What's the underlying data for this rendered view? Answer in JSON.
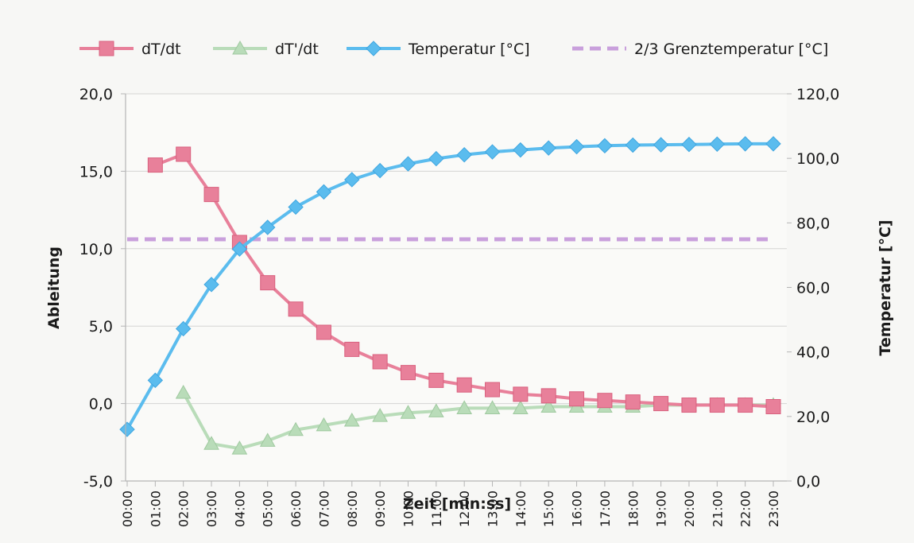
{
  "chart_data": {
    "type": "line",
    "xlabel": "Zeit [min:ss]",
    "ylabel_left": "Ableitung",
    "ylabel_right": "Temperatur [°C]",
    "x": [
      "00:00",
      "01:00",
      "02:00",
      "03:00",
      "04:00",
      "05:00",
      "06:00",
      "07:00",
      "08:00",
      "09:00",
      "10:00",
      "11:00",
      "12:00",
      "13:00",
      "14:00",
      "15:00",
      "16:00",
      "17:00",
      "18:00",
      "19:00",
      "20:00",
      "21:00",
      "22:00",
      "23:00"
    ],
    "ylim_left": [
      -5,
      20
    ],
    "ylim_right": [
      0,
      120
    ],
    "yticks_left": [
      "-5,0",
      "0,0",
      "5,0",
      "10,0",
      "15,0",
      "20,0"
    ],
    "yticks_right": [
      "0,0",
      "20,0",
      "40,0",
      "60,0",
      "80,0",
      "100,0",
      "120,0"
    ],
    "legend_position": "top",
    "grid": true,
    "series": [
      {
        "name": "dT/dt",
        "axis": "left",
        "marker": "square",
        "color": "#e8809a",
        "values": [
          null,
          15.4,
          16.1,
          13.5,
          10.4,
          7.8,
          6.1,
          4.6,
          3.5,
          2.7,
          2.0,
          1.5,
          1.2,
          0.9,
          0.6,
          0.5,
          0.3,
          0.2,
          0.1,
          0.0,
          -0.1,
          -0.1,
          -0.1,
          -0.2
        ]
      },
      {
        "name": "dT'/dt",
        "axis": "left",
        "marker": "triangle",
        "color": "#b9dcb9",
        "values": [
          null,
          null,
          0.7,
          -2.6,
          -2.9,
          -2.4,
          -1.7,
          -1.4,
          -1.1,
          -0.8,
          -0.6,
          -0.5,
          -0.3,
          -0.3,
          -0.3,
          -0.2,
          -0.2,
          -0.2,
          -0.2,
          -0.1,
          -0.1,
          -0.1,
          -0.1,
          -0.1
        ]
      },
      {
        "name": "Temperatur [°C]",
        "axis": "right",
        "marker": "diamond",
        "color": "#5bbcee",
        "values": [
          16.0,
          31.2,
          47.2,
          60.9,
          71.9,
          78.6,
          84.9,
          89.6,
          93.4,
          96.2,
          98.3,
          99.9,
          101.1,
          102.0,
          102.6,
          103.2,
          103.6,
          103.9,
          104.1,
          104.2,
          104.3,
          104.4,
          104.5,
          104.5
        ]
      },
      {
        "name": "2/3 Grenztemperatur [°C]",
        "axis": "right",
        "marker": "none",
        "dashed": true,
        "color": "#c9a0dc",
        "values": [
          74.9,
          74.9,
          74.9,
          74.9,
          74.9,
          74.9,
          74.9,
          74.9,
          74.9,
          74.9,
          74.9,
          74.9,
          74.9,
          74.9,
          74.9,
          74.9,
          74.9,
          74.9,
          74.9,
          74.9,
          74.9,
          74.9,
          74.9,
          74.9
        ]
      }
    ]
  }
}
